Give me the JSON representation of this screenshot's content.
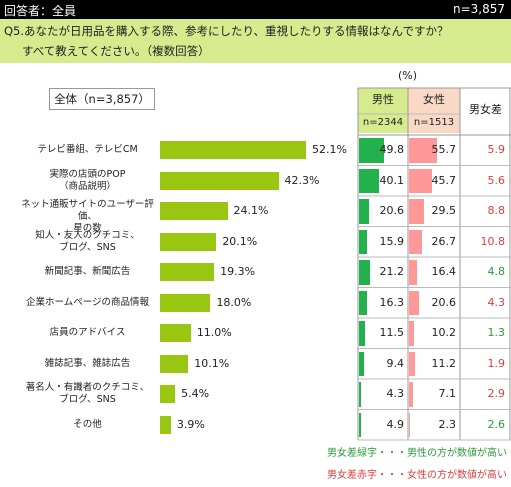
{
  "header": {
    "respondents_label": "回答者：全員",
    "n_total": "n=3,857"
  },
  "question": {
    "line1": "Q5.あなたが日用品を購入する際、参考にしたり、重視したりする情報はなんですか？",
    "line2": "すべて教えてください。（複数回答）"
  },
  "total_label": "全体（n=3,857）",
  "unit_label": "(%)",
  "table_headers": {
    "male": "男性",
    "male_n": "n=2344",
    "female": "女性",
    "female_n": "n=1513",
    "gender_diff": "男女差"
  },
  "notes": {
    "green": "男女差緑字・・・男性の方が数値が高い",
    "red": "男女差赤字・・・女性の方が数値が高い"
  },
  "colors": {
    "bar": "#99c610",
    "header_bg": "#d6ea8e",
    "male_bar": "#22b14c",
    "female_bar": "#ff9999",
    "male_hdr_bg": "#d6ea8e",
    "female_hdr_bg": "#f9d9c6",
    "diff_red": "#e03c3c",
    "diff_green": "#2a9d3a"
  },
  "chart_data": {
    "type": "bar",
    "categories": [
      "テレビ番組、テレビCM",
      "実際の店頭のPOP\n（商品説明）",
      "ネット通販サイトのユーザー評価、\n星の数",
      "知人・友人のクチコミ、\nブログ、SNS",
      "新聞記事、新聞広告",
      "企業ホームページの商品情報",
      "店員のアドバイス",
      "雑誌記事、雑誌広告",
      "著名人・有識者のクチコミ、\nブログ、SNS",
      "その他"
    ],
    "values": [
      52.1,
      42.3,
      24.1,
      20.1,
      19.3,
      18.0,
      11.0,
      10.1,
      5.4,
      3.9
    ],
    "value_labels": [
      "52.1%",
      "42.3%",
      "24.1%",
      "20.1%",
      "19.3%",
      "18.0%",
      "11.0%",
      "10.1%",
      "5.4%",
      "3.9%"
    ],
    "male": [
      "49.8",
      "40.1",
      "20.6",
      "15.9",
      "21.2",
      "16.3",
      "11.5",
      "9.4",
      "4.3",
      "4.9"
    ],
    "female": [
      "55.7",
      "45.7",
      "29.5",
      "26.7",
      "16.4",
      "20.6",
      "10.2",
      "11.2",
      "7.1",
      "2.3"
    ],
    "diff": [
      "5.9",
      "5.6",
      "8.8",
      "10.8",
      "4.8",
      "4.3",
      "1.3",
      "1.9",
      "2.9",
      "2.6"
    ],
    "diff_color": [
      "red",
      "red",
      "red",
      "red",
      "green",
      "red",
      "green",
      "red",
      "red",
      "green"
    ],
    "xlim": [
      0,
      100
    ]
  }
}
